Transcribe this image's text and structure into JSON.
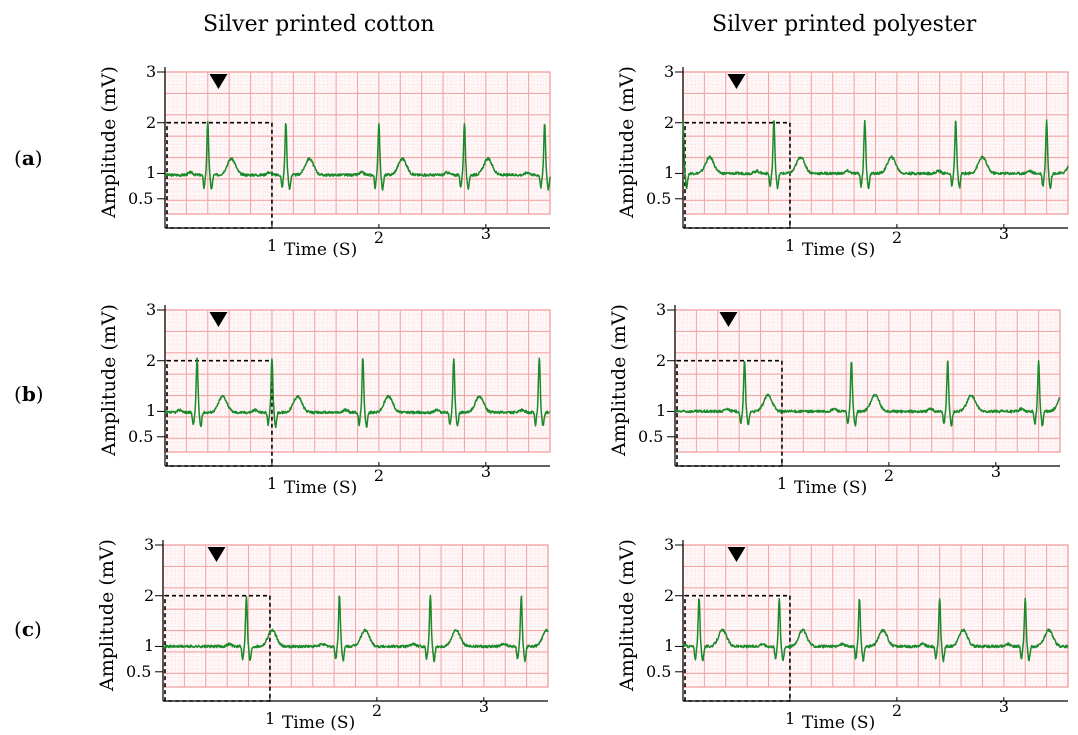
{
  "column_titles": [
    "Silver printed cotton",
    "Silver printed polyester"
  ],
  "row_labels": [
    {
      "open": "(",
      "letter": "a",
      "close": ")"
    },
    {
      "open": "(",
      "letter": "b",
      "close": ")"
    },
    {
      "open": "(",
      "letter": "c",
      "close": ")"
    }
  ],
  "colors": {
    "signal": "#1a8a2a",
    "grid_major": "#f2a6a6",
    "grid_minor": "#f8cfcf",
    "box": "#000000"
  },
  "chart_data": [
    {
      "type": "line",
      "row": "a",
      "column": "Silver printed cotton",
      "xlabel": "Time (S)",
      "ylabel": "Amplitude (mV)",
      "yticks": [
        "0.5",
        "1",
        "2",
        "3"
      ],
      "xticks": [
        "1",
        "2",
        "3"
      ],
      "xlim": [
        0,
        3.6
      ],
      "ylim": [
        0.2,
        3
      ],
      "baseline_mV": 0.97,
      "r_peak_mV": 2.0,
      "r_peaks_s": [
        0.4,
        1.13,
        2.0,
        2.8,
        3.55
      ],
      "t_wave_offset_s": 0.22,
      "marker": "▼",
      "marker_x_s": 0.5,
      "highlight_box": {
        "x": [
          0,
          1
        ],
        "y": [
          0.2,
          2
        ]
      }
    },
    {
      "type": "line",
      "row": "a",
      "column": "Silver printed polyester",
      "xlabel": "Time (S)",
      "ylabel": "Amplitude (mV)",
      "yticks": [
        "0.5",
        "1",
        "2",
        "3"
      ],
      "xticks": [
        "1",
        "2",
        "3"
      ],
      "xlim": [
        0,
        3.6
      ],
      "ylim": [
        0.2,
        3
      ],
      "baseline_mV": 1.0,
      "r_peak_mV": 2.05,
      "r_peaks_s": [
        0.0,
        0.85,
        1.7,
        2.55,
        3.4
      ],
      "t_wave_offset_s": 0.25,
      "marker": "▼",
      "marker_x_s": 0.5,
      "highlight_box": {
        "x": [
          0,
          1
        ],
        "y": [
          0.2,
          2
        ]
      }
    },
    {
      "type": "line",
      "row": "b",
      "column": "Silver printed cotton",
      "xlabel": "Time (S)",
      "ylabel": "Amplitude (mV)",
      "yticks": [
        "0.5",
        "1",
        "2",
        "3"
      ],
      "xticks": [
        "1",
        "2",
        "3"
      ],
      "xlim": [
        0,
        3.6
      ],
      "ylim": [
        0.2,
        3
      ],
      "baseline_mV": 0.98,
      "r_peak_mV": 2.05,
      "r_peaks_s": [
        0.3,
        1.0,
        1.85,
        2.7,
        3.5
      ],
      "t_wave_offset_s": 0.24,
      "marker": "▼",
      "marker_x_s": 0.5,
      "highlight_box": {
        "x": [
          0,
          1
        ],
        "y": [
          0.2,
          2
        ]
      }
    },
    {
      "type": "line",
      "row": "b",
      "column": "Silver printed polyester",
      "xlabel": "Time (S)",
      "ylabel": "Amplitude (mV)",
      "yticks": [
        "0.5",
        "1",
        "2",
        "3"
      ],
      "xticks": [
        "1",
        "2",
        "3"
      ],
      "xlim": [
        0,
        3.6
      ],
      "ylim": [
        0.2,
        3
      ],
      "baseline_mV": 1.0,
      "r_peak_mV": 2.0,
      "r_peaks_s": [
        0.65,
        1.65,
        2.55,
        3.4
      ],
      "t_wave_offset_s": 0.22,
      "marker": "▼",
      "marker_x_s": 0.5,
      "highlight_box": {
        "x": [
          0,
          1
        ],
        "y": [
          0.2,
          2
        ]
      }
    },
    {
      "type": "line",
      "row": "c",
      "column": "Silver printed cotton",
      "xlabel": "Time (S)",
      "ylabel": "Amplitude (mV)",
      "yticks": [
        "0.5",
        "1",
        "2",
        "3"
      ],
      "xticks": [
        "1",
        "2",
        "3"
      ],
      "xlim": [
        0,
        3.6
      ],
      "ylim": [
        0.2,
        3
      ],
      "baseline_mV": 1.0,
      "r_peak_mV": 2.0,
      "r_peaks_s": [
        0.78,
        1.65,
        2.5,
        3.35
      ],
      "t_wave_offset_s": 0.24,
      "marker": "▼",
      "marker_x_s": 0.5,
      "highlight_box": {
        "x": [
          0,
          1
        ],
        "y": [
          0.2,
          2
        ]
      }
    },
    {
      "type": "line",
      "row": "c",
      "column": "Silver printed polyester",
      "xlabel": "Time (S)",
      "ylabel": "Amplitude (mV)",
      "yticks": [
        "0.5",
        "1",
        "2",
        "3"
      ],
      "xticks": [
        "1",
        "2",
        "3"
      ],
      "xlim": [
        0,
        3.6
      ],
      "ylim": [
        0.2,
        3
      ],
      "baseline_mV": 1.0,
      "r_peak_mV": 1.95,
      "r_peaks_s": [
        0.15,
        0.9,
        1.65,
        2.4,
        3.2
      ],
      "t_wave_offset_s": 0.22,
      "marker": "▼",
      "marker_x_s": 0.5,
      "highlight_box": {
        "x": [
          0,
          1
        ],
        "y": [
          0.2,
          2
        ]
      }
    }
  ]
}
